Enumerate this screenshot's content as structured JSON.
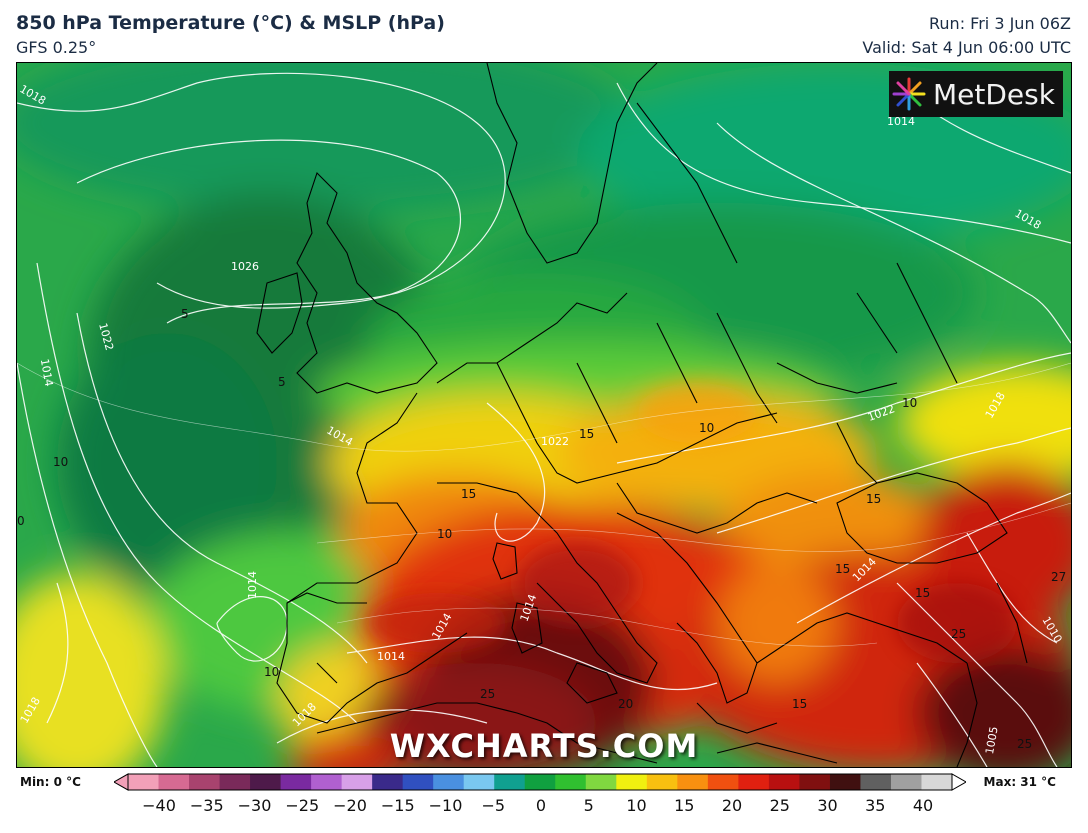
{
  "header": {
    "title": "850 hPa Temperature (°C) & MSLP (hPa)",
    "model": "GFS 0.25°",
    "run": "Run: Fri 3 Jun 06Z",
    "valid": "Valid: Sat 4 Jun 06:00 UTC"
  },
  "logo": {
    "text": "MetDesk",
    "icon": "metdesk-star-icon"
  },
  "watermark": "WXCHARTS.COM",
  "legend": {
    "min_label": "Min: 0 °C",
    "max_label": "Max: 31 °C",
    "ticks": [
      "−40",
      "−35",
      "−30",
      "−25",
      "−20",
      "−15",
      "−10",
      "−5",
      "0",
      "5",
      "10",
      "15",
      "20",
      "25",
      "30",
      "35",
      "40"
    ],
    "colors": [
      "#f2a0b8",
      "#d66a92",
      "#a8436e",
      "#7a2a5a",
      "#4e1a4a",
      "#7a2aa0",
      "#b060d0",
      "#d8a0e8",
      "#3a2a8a",
      "#3050c0",
      "#4a90e0",
      "#7ac8f0",
      "#10a090",
      "#10a040",
      "#30c030",
      "#80d840",
      "#f0f010",
      "#f8c010",
      "#f89010",
      "#f05010",
      "#e02010",
      "#b81010",
      "#801010",
      "#401010",
      "#606060",
      "#a0a0a0",
      "#d8d8d8"
    ]
  },
  "map": {
    "isobars": [
      "1018",
      "1014",
      "1018",
      "1026",
      "1022",
      "1014",
      "1014",
      "1014",
      "1022",
      "1018",
      "1014",
      "1014",
      "1018",
      "1014",
      "1010",
      "1005",
      "1014",
      "1018",
      "1022"
    ],
    "temperature_labels": [
      "5",
      "5",
      "10",
      "10",
      "15",
      "15",
      "10",
      "15",
      "15",
      "15",
      "20",
      "15",
      "25",
      "25",
      "25",
      "27",
      "10",
      "0",
      "10"
    ]
  }
}
